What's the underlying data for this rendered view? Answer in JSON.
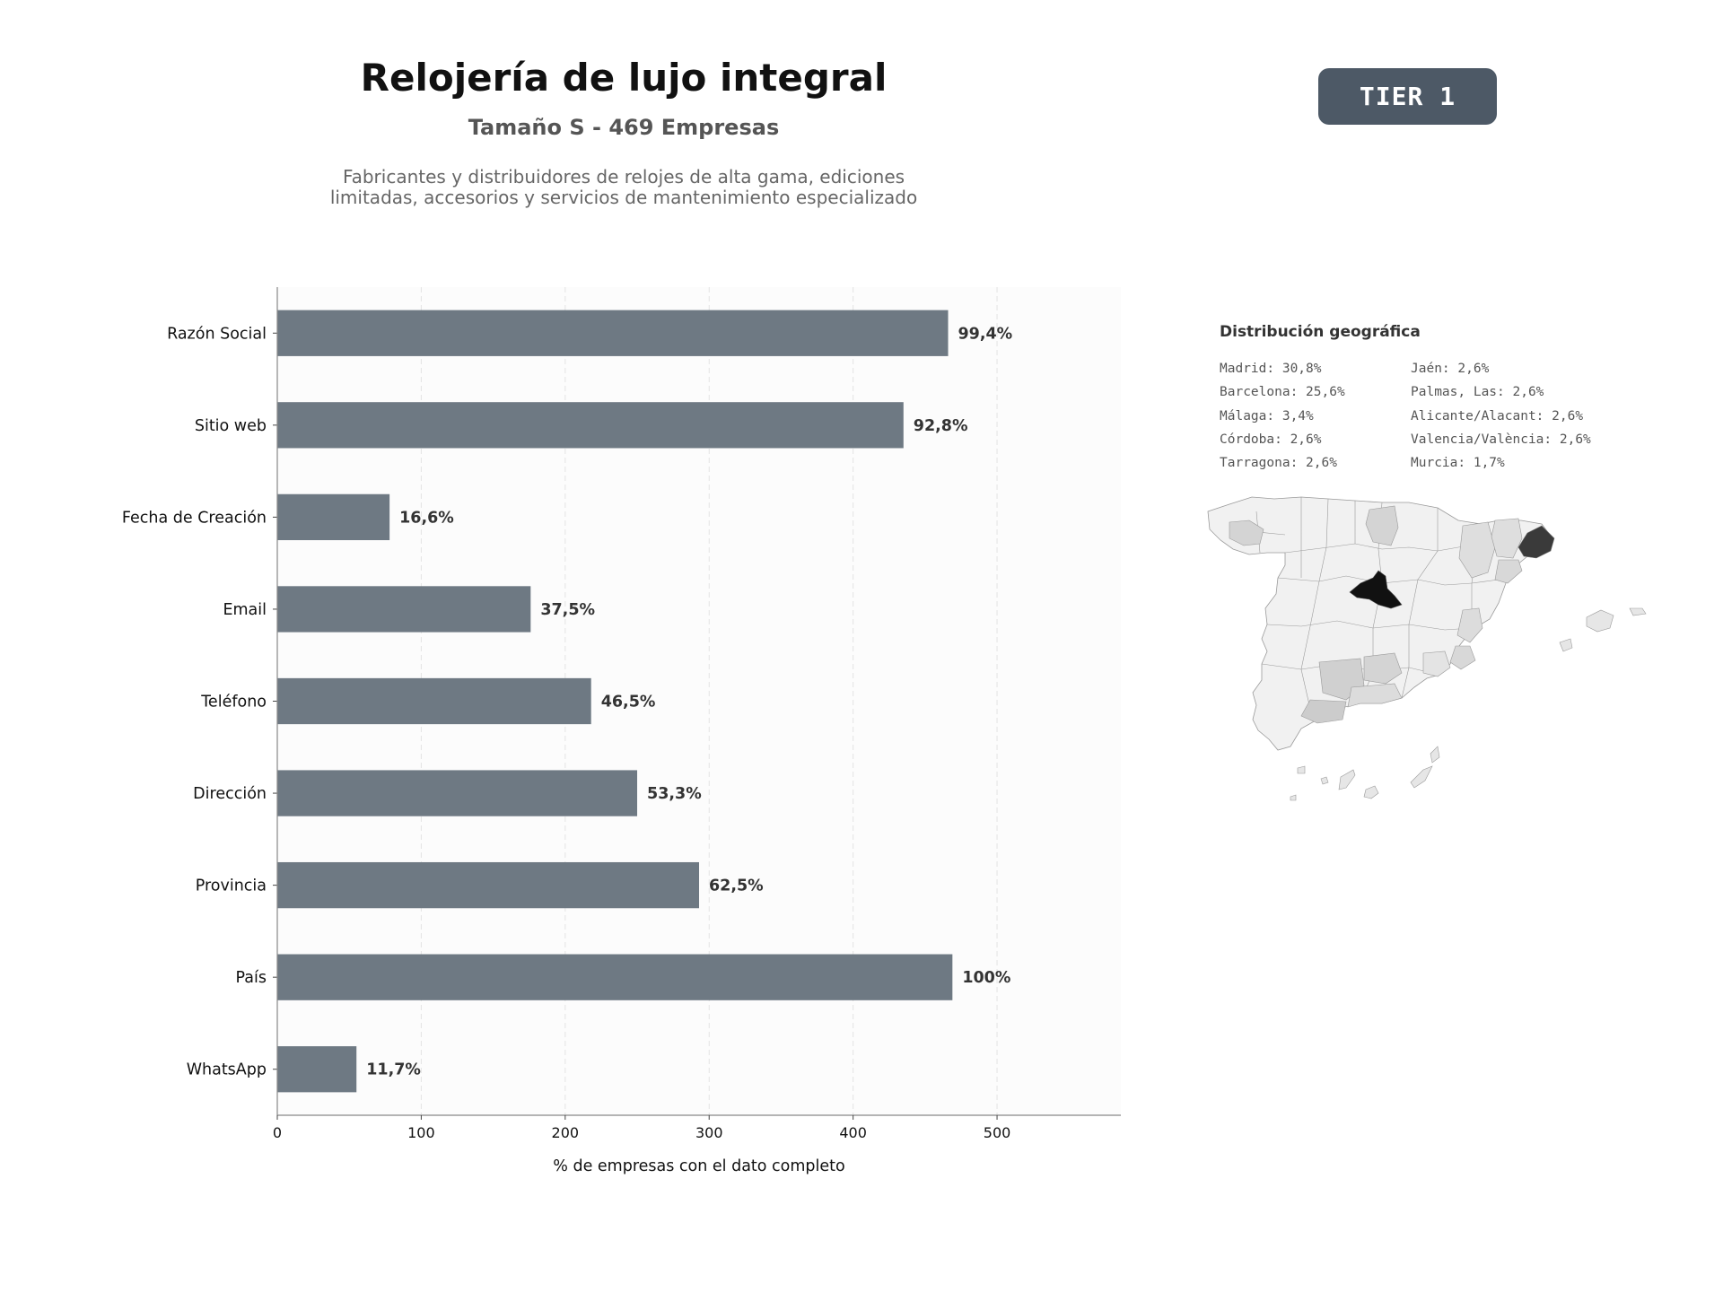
{
  "header": {
    "title": "Relojería de lujo integral",
    "subtitle": "Tamaño S - 469 Empresas",
    "description_line1": "Fabricantes y distribuidores de relojes de alta gama, ediciones",
    "description_line2": "limitadas, accesorios y servicios de mantenimiento especializado"
  },
  "badge": {
    "label": "TIER 1",
    "color": "#4d5966"
  },
  "chart_data": {
    "type": "bar",
    "orientation": "horizontal",
    "categories": [
      "Razón Social",
      "Sitio web",
      "Fecha de Creación",
      "Email",
      "Teléfono",
      "Dirección",
      "Provincia",
      "País",
      "WhatsApp"
    ],
    "values": [
      466,
      435,
      78,
      176,
      218,
      250,
      293,
      469,
      55
    ],
    "data_labels": [
      "99,4%",
      "92,8%",
      "16,6%",
      "37,5%",
      "46,5%",
      "53,3%",
      "62,5%",
      "100%",
      "11,7%"
    ],
    "xlabel": "% de empresas con el dato completo",
    "ylabel": "",
    "xlim": [
      0,
      586
    ],
    "xticks": [
      0,
      100,
      200,
      300,
      400,
      500
    ],
    "grid": "x-dashed",
    "bar_color": "#6e7983",
    "plot_background": "#fcfcfc"
  },
  "geo": {
    "title": "Distribución geográfica",
    "items": [
      "Madrid: 30,8%",
      "Jaén: 2,6%",
      "Barcelona: 25,6%",
      "Palmas, Las: 2,6%",
      "Málaga: 3,4%",
      "Alicante/Alacant: 2,6%",
      "Córdoba: 2,6%",
      "Valencia/València: 2,6%",
      "Tarragona: 2,6%",
      "Murcia: 1,7%"
    ],
    "map_colors": {
      "high": "#111111",
      "mid": "#3a3a3a",
      "low": "#d4d4d4",
      "base": "#f1f1f1",
      "border": "#9a9a9a"
    }
  }
}
